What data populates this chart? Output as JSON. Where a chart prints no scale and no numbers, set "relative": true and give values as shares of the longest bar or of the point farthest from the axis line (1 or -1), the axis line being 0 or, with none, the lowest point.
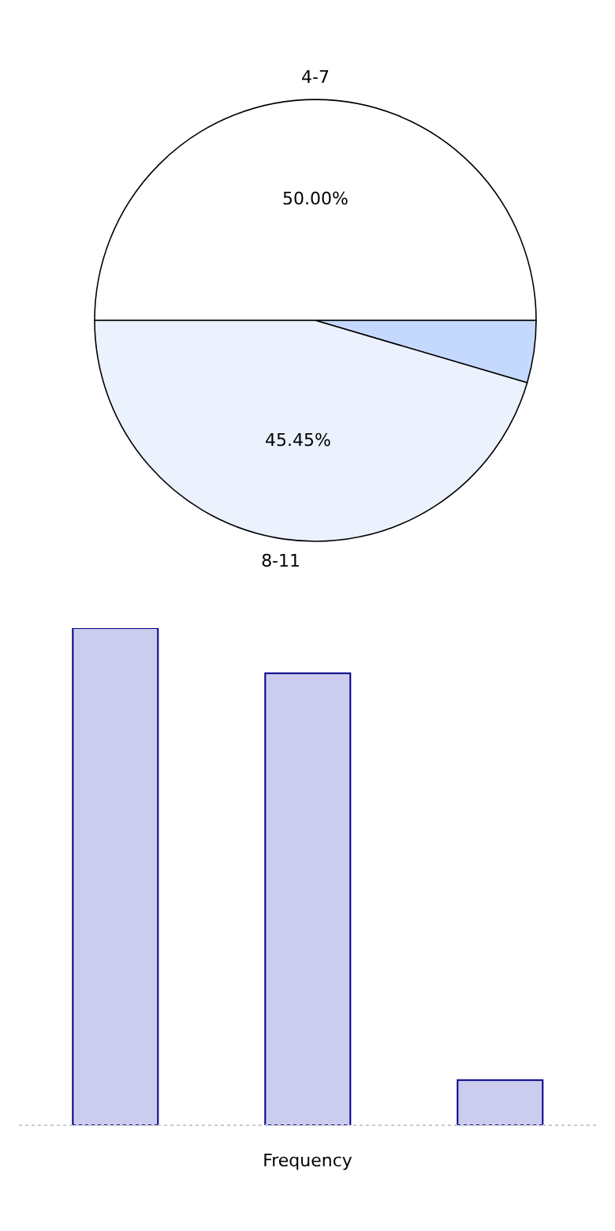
{
  "chart_data": [
    {
      "type": "pie",
      "categories": [
        "4-7",
        null,
        "8-11"
      ],
      "values": [
        50,
        4.55,
        45.45
      ],
      "colors": [
        "#ffffff",
        "#c5d9ff",
        "#ebf1fd"
      ],
      "value_labels": [
        "50.00%",
        null,
        "45.45%"
      ],
      "legend": false
    },
    {
      "type": "bar",
      "relative": true,
      "categories": [
        null,
        null,
        null
      ],
      "values": [
        1,
        0.909,
        0.091
      ],
      "color": "#ccccee",
      "xlabel": "Frequency",
      "grid": false,
      "legend": false
    }
  ]
}
